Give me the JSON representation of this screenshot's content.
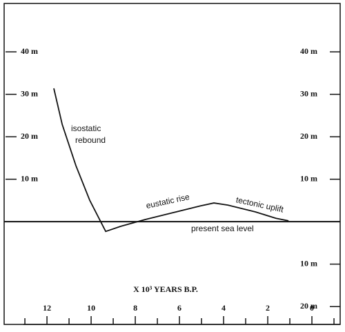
{
  "chart_data": {
    "type": "line",
    "x_label": "X 10³  YEARS B.P.",
    "series": [
      {
        "color": "#111111",
        "x": [
          11.69,
          11.31,
          10.69,
          10.06,
          9.34,
          8.66,
          7.56,
          6.31,
          5.06,
          4.44,
          3.81,
          2.56,
          1.63,
          1.06
        ],
        "values": [
          31.4,
          22.9,
          13.2,
          5.0,
          -2.3,
          -1.1,
          0.5,
          2.1,
          3.7,
          4.4,
          3.9,
          2.3,
          0.8,
          0.2
        ]
      }
    ],
    "xlim": [
      13.94,
      -1.28
    ],
    "xticks": [
      12,
      10,
      8,
      6,
      4,
      2,
      0
    ],
    "xminor_ticks": [
      13,
      11,
      9,
      7,
      5,
      3,
      1,
      -1
    ],
    "ylim": [
      -24.2,
      51.4
    ],
    "yticks": [
      {
        "value": 40,
        "label": "40 m"
      },
      {
        "value": 30,
        "label": "30 m"
      },
      {
        "value": 20,
        "label": "20 m"
      },
      {
        "value": 10,
        "label": "10 m"
      }
    ],
    "y2lim": [
      -24.2,
      51.4
    ],
    "y2ticks": [
      {
        "value": 40,
        "label": "40 m"
      },
      {
        "value": 30,
        "label": "30 m"
      },
      {
        "value": 20,
        "label": "20 m"
      },
      {
        "value": 10,
        "label": "10 m"
      },
      {
        "value": -10,
        "label": "10 m"
      },
      {
        "value": -20,
        "label": "20 m"
      }
    ],
    "annotations": [
      "isostatic",
      "rebound",
      "eustatic rise",
      "tectonic uplift",
      "present sea level"
    ]
  }
}
